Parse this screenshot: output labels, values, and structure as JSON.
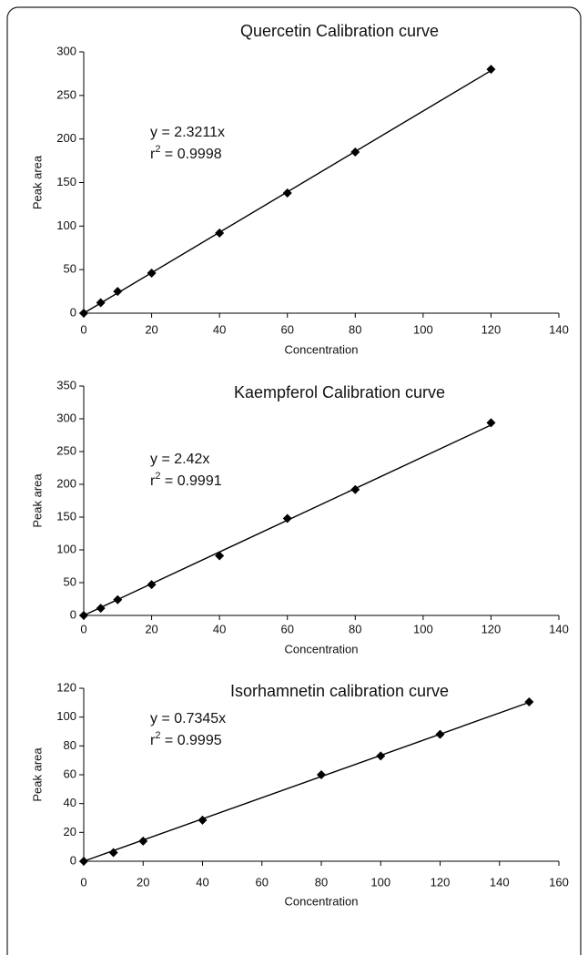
{
  "chart_data": [
    {
      "type": "scatter",
      "title": "Quercetin Calibration curve",
      "x_label": "Concentration",
      "y_label": "Peak area",
      "equation": "y = 2.3211x",
      "r_squared": {
        "symbol": "r",
        "exponent": "2",
        "text": " = 0.9998"
      },
      "x": [
        0,
        5,
        10,
        20,
        40,
        60,
        80,
        120
      ],
      "values": [
        0,
        12,
        25,
        46,
        92,
        138,
        185,
        280
      ],
      "trendline": {
        "x": [
          0,
          120
        ],
        "values": [
          0,
          278.5
        ]
      },
      "color": "#000000",
      "xlim": [
        0,
        140
      ],
      "xticks": [
        0,
        20,
        40,
        60,
        80,
        100,
        120,
        140
      ],
      "ylim": [
        0,
        300
      ],
      "yticks": [
        0,
        50,
        100,
        150,
        200,
        250,
        300
      ]
    },
    {
      "type": "scatter",
      "title": "Kaempferol Calibration curve",
      "x_label": "Concentration",
      "y_label": "Peak area",
      "equation": "y = 2.42x",
      "r_squared": {
        "symbol": "r",
        "exponent": "2",
        "text": " = 0.9991"
      },
      "x": [
        0,
        5,
        10,
        20,
        40,
        60,
        80,
        120
      ],
      "values": [
        0,
        11,
        24,
        47,
        91,
        148,
        192,
        294
      ],
      "trendline": {
        "x": [
          0,
          120
        ],
        "values": [
          0,
          290.4
        ]
      },
      "color": "#000000",
      "xlim": [
        0,
        140
      ],
      "xticks": [
        0,
        20,
        40,
        60,
        80,
        100,
        120,
        140
      ],
      "ylim": [
        0,
        350
      ],
      "yticks": [
        0,
        50,
        100,
        150,
        200,
        250,
        300,
        350
      ]
    },
    {
      "type": "scatter",
      "title": "Isorhamnetin calibration curve",
      "x_label": "Concentration",
      "y_label": "Peak area",
      "equation": "y = 0.7345x",
      "r_squared": {
        "symbol": "r",
        "exponent": "2",
        "text": " = 0.9995"
      },
      "x": [
        0,
        10,
        20,
        40,
        80,
        100,
        120,
        150
      ],
      "values": [
        0,
        6,
        14,
        28.5,
        60,
        73,
        88,
        110.5
      ],
      "trendline": {
        "x": [
          0,
          150
        ],
        "values": [
          0,
          110.2
        ]
      },
      "color": "#000000",
      "xlim": [
        0,
        160
      ],
      "xticks": [
        0,
        20,
        40,
        60,
        80,
        100,
        120,
        140,
        160
      ],
      "ylim": [
        0,
        120
      ],
      "yticks": [
        0,
        20,
        40,
        60,
        80,
        100,
        120
      ]
    }
  ]
}
